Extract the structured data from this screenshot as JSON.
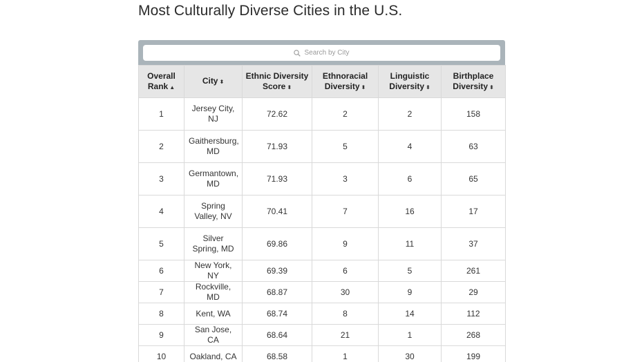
{
  "title": "Most Culturally Diverse Cities in the U.S.",
  "search": {
    "placeholder": "Search by City"
  },
  "columns": [
    {
      "line1": "Overall",
      "line2": "Rank",
      "sort": "▲"
    },
    {
      "line1": "City",
      "line2": "",
      "sort": "⬍"
    },
    {
      "line1": "Ethnic Diversity",
      "line2": "Score",
      "sort": "⬍"
    },
    {
      "line1": "Ethnoracial",
      "line2": "Diversity",
      "sort": "⬍"
    },
    {
      "line1": "Linguistic",
      "line2": "Diversity",
      "sort": "⬍"
    },
    {
      "line1": "Birthplace",
      "line2": "Diversity",
      "sort": "⬍"
    }
  ],
  "rows": [
    [
      "1",
      "Jersey City, NJ",
      "72.62",
      "2",
      "2",
      "158"
    ],
    [
      "2",
      "Gaithersburg, MD",
      "71.93",
      "5",
      "4",
      "63"
    ],
    [
      "3",
      "Germantown, MD",
      "71.93",
      "3",
      "6",
      "65"
    ],
    [
      "4",
      "Spring Valley, NV",
      "70.41",
      "7",
      "16",
      "17"
    ],
    [
      "5",
      "Silver Spring, MD",
      "69.86",
      "9",
      "11",
      "37"
    ],
    [
      "6",
      "New York, NY",
      "69.39",
      "6",
      "5",
      "261"
    ],
    [
      "7",
      "Rockville, MD",
      "68.87",
      "30",
      "9",
      "29"
    ],
    [
      "8",
      "Kent, WA",
      "68.74",
      "8",
      "14",
      "112"
    ],
    [
      "9",
      "San Jose, CA",
      "68.64",
      "21",
      "1",
      "268"
    ],
    [
      "10",
      "Oakland, CA",
      "68.58",
      "1",
      "30",
      "199"
    ]
  ]
}
